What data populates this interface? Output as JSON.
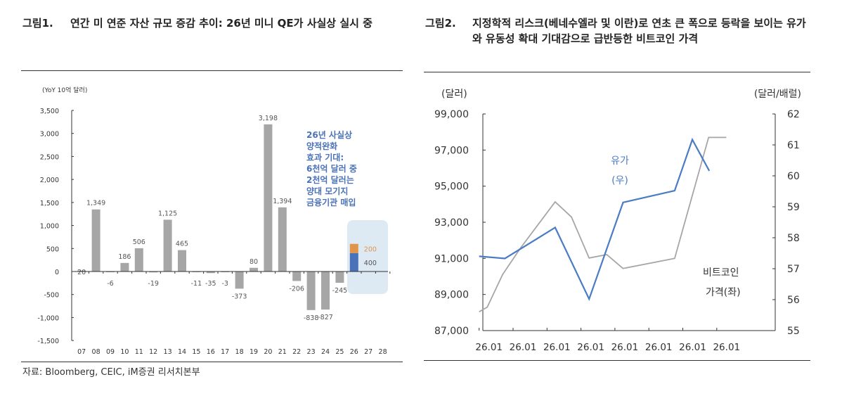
{
  "figure1": {
    "number": "그림1.",
    "title": "연간 미 연준 자산 규모 증감 추이: 26년 미니 QE가 사실상 실시 중",
    "source": "자료: Bloomberg, CEIC, iM증권 리서치본부"
  },
  "figure2": {
    "number": "그림2.",
    "title": "지정학적 리스크(베네수엘라 및 이란)로 연초 큰 폭으로 등락을 보이는 유가와 유동성 확대 기대감으로 급반등한 비트코인 가격"
  },
  "chart_data": [
    {
      "type": "bar",
      "ylabel": "(YoY 10억 달러)",
      "ylim": [
        -1500,
        3500
      ],
      "yticks": [
        "3,500",
        "3,000",
        "2,500",
        "2,000",
        "1,500",
        "1,000",
        "500",
        "0",
        "-500",
        "-1,000",
        "-1,500"
      ],
      "categories": [
        "07",
        "08",
        "09",
        "10",
        "11",
        "12",
        "13",
        "14",
        "15",
        "16",
        "17",
        "18",
        "19",
        "20",
        "21",
        "22",
        "23",
        "24",
        "25",
        "26",
        "27",
        "28"
      ],
      "values": [
        20,
        1349,
        -6,
        186,
        506,
        -19,
        1125,
        465,
        -11,
        -35,
        -3,
        -373,
        80,
        3198,
        1394,
        -206,
        -838,
        -827,
        -245,
        null,
        null,
        null
      ],
      "labels": [
        "20",
        "1,349",
        "-6",
        "186",
        "506",
        "-19",
        "1,125",
        "465",
        "-11",
        "-35",
        "-3",
        "-373",
        "80",
        "3,198",
        "1,394",
        "-206",
        "-838",
        "-827",
        "-245",
        "",
        "",
        ""
      ],
      "stacked_2026": [
        {
          "value": 400,
          "label": "400",
          "color": "#4a72b8"
        },
        {
          "value": 200,
          "label": "200",
          "color": "#e0954a"
        }
      ],
      "bar_color": "#a6a6a6",
      "annotation": [
        "26년 사실상",
        "양적완화",
        "효과 기대:",
        "6천억 달러 중",
        "2천억 달러는",
        "양대 모기지",
        "금융기관 매입"
      ],
      "annotation_color": "#4a72b8",
      "highlight_color": "#dde9f3"
    },
    {
      "type": "line",
      "ylabel_left": "(달러)",
      "ylabel_right": "(달러/배럴)",
      "ylim_left": [
        87000,
        99000
      ],
      "ylim_right": [
        55,
        62
      ],
      "yticks_left": [
        "99,000",
        "97,000",
        "95,000",
        "93,000",
        "91,000",
        "89,000",
        "87,000"
      ],
      "yticks_right": [
        "62",
        "61",
        "60",
        "59",
        "58",
        "57",
        "56",
        "55"
      ],
      "xticks": [
        "26.01",
        "26.01",
        "26.01",
        "26.01",
        "26.01",
        "26.01",
        "26.01",
        "26.01"
      ],
      "series": [
        {
          "name": "비트코인 가격(좌)",
          "name_lines": [
            "비트코인",
            "가격(좌)"
          ],
          "axis": "left",
          "color": "#a6a6a6",
          "x": [
            0,
            0.24,
            0.69,
            1.21,
            2.24,
            2.72,
            3.24,
            3.76,
            4.24,
            5.76,
            6.76,
            7.28
          ],
          "y": [
            88040,
            88300,
            90100,
            91550,
            94130,
            93290,
            91020,
            91210,
            90440,
            91000,
            97700,
            97700
          ]
        },
        {
          "name": "유가(우)",
          "name_lines": [
            "유가",
            "(우)"
          ],
          "axis": "right",
          "color": "#4a7cc4",
          "x": [
            0,
            0.76,
            2.24,
            3.24,
            4.24,
            5.76,
            6.28,
            6.78
          ],
          "y": [
            57.4,
            57.33,
            58.33,
            56.02,
            59.14,
            59.52,
            61.17,
            60.16
          ]
        }
      ]
    }
  ]
}
